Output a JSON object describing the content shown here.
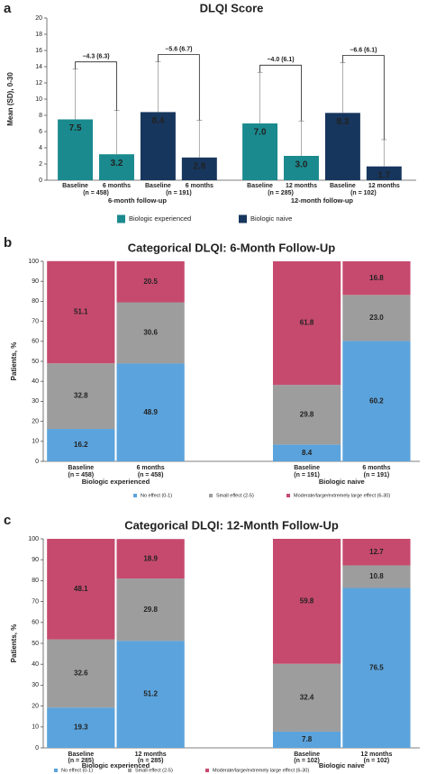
{
  "chart_data": [
    {
      "type": "bar",
      "panel": "a",
      "title": "DLQI Score",
      "ylabel": "Mean (SD), 0-30",
      "ylim": [
        0,
        20
      ],
      "yticks": [
        0,
        2,
        4,
        6,
        8,
        10,
        12,
        14,
        16,
        18,
        20
      ],
      "categories": [
        "Baseline",
        "6 months",
        "Baseline",
        "6 months",
        "Baseline",
        "12 months",
        "Baseline",
        "12 months"
      ],
      "sample_sizes": [
        "(n = 458)",
        "(n = 191)",
        "(n = 285)",
        "(n = 102)"
      ],
      "groups": [
        "6-month follow-up",
        "12-month follow-up"
      ],
      "change_labels": [
        "−4.3 (6.3)",
        "−5.6 (6.7)",
        "−4.0 (6.1)",
        "−6.6 (6.1)"
      ],
      "series": [
        {
          "name": "Biologic experienced",
          "color": "#1a8a8e",
          "values": [
            7.5,
            3.2,
            null,
            null,
            7.0,
            3.0,
            null,
            null
          ],
          "value_labels": [
            "7.5",
            "3.2",
            null,
            null,
            "7.0",
            "3.0",
            null,
            null
          ],
          "errors": [
            6.2,
            5.4,
            null,
            null,
            6.3,
            4.3,
            null,
            null
          ]
        },
        {
          "name": "Biologic naive",
          "color": "#17365d",
          "values": [
            null,
            null,
            8.4,
            2.8,
            null,
            null,
            8.3,
            1.7
          ],
          "value_labels": [
            null,
            null,
            "8.4",
            "2.8",
            null,
            null,
            "8.3",
            "1.7"
          ],
          "errors": [
            null,
            null,
            6.2,
            4.6,
            null,
            null,
            6.2,
            3.3
          ]
        }
      ]
    },
    {
      "type": "bar",
      "stacked": true,
      "panel": "b",
      "title": "Categorical DLQI: 6-Month Follow-Up",
      "ylabel": "Patients, %",
      "ylim": [
        0,
        100
      ],
      "yticks": [
        0,
        10,
        20,
        30,
        40,
        50,
        60,
        70,
        80,
        90,
        100
      ],
      "categories": [
        "Baseline",
        "6 months",
        "Baseline",
        "6 months"
      ],
      "sample_sizes": [
        "(n = 458)",
        "(n = 458)",
        "(n = 191)",
        "(n = 191)"
      ],
      "groups": [
        "Biologic experienced",
        "Biologic naive"
      ],
      "series": [
        {
          "name": "No effect (0-1)",
          "color": "#5ba3dc",
          "values": [
            16.2,
            48.9,
            8.4,
            60.2
          ],
          "value_labels": [
            "16.2",
            "48.9",
            "8.4",
            "60.2"
          ]
        },
        {
          "name": "Small effect (2-5)",
          "color": "#9d9d9d",
          "values": [
            32.8,
            30.6,
            29.8,
            23.0
          ],
          "value_labels": [
            "32.8",
            "30.6",
            "29.8",
            "23.0"
          ]
        },
        {
          "name": "Moderate/large/extremely large effect (6-30)",
          "color": "#c64a6e",
          "values": [
            51.1,
            20.5,
            61.8,
            16.8
          ],
          "value_labels": [
            "51.1",
            "20.5",
            "61.8",
            "16.8"
          ]
        }
      ]
    },
    {
      "type": "bar",
      "stacked": true,
      "panel": "c",
      "title": "Categorical DLQI: 12-Month Follow-Up",
      "ylabel": "Patients, %",
      "ylim": [
        0,
        100
      ],
      "yticks": [
        0,
        10,
        20,
        30,
        40,
        50,
        60,
        70,
        80,
        90,
        100
      ],
      "categories": [
        "Baseline",
        "12 months",
        "Baseline",
        "12 months"
      ],
      "sample_sizes": [
        "(n = 285)",
        "(n = 285)",
        "(n = 102)",
        "(n = 102)"
      ],
      "groups": [
        "Biologic experienced",
        "Biologic naive"
      ],
      "series": [
        {
          "name": "No effect (0-1)",
          "color": "#5ba3dc",
          "values": [
            19.3,
            51.2,
            7.8,
            76.5
          ],
          "value_labels": [
            "19.3",
            "51.2",
            "7.8",
            "76.5"
          ]
        },
        {
          "name": "Small effect (2-5)",
          "color": "#9d9d9d",
          "values": [
            32.6,
            29.8,
            32.4,
            10.8
          ],
          "value_labels": [
            "32.6",
            "29.8",
            "32.4",
            "10.8"
          ]
        },
        {
          "name": "Moderate/large/extremely large effect (6-30)",
          "color": "#c64a6e",
          "values": [
            48.1,
            18.9,
            59.8,
            12.7
          ],
          "value_labels": [
            "48.1",
            "18.9",
            "59.8",
            "12.7"
          ]
        }
      ]
    }
  ]
}
